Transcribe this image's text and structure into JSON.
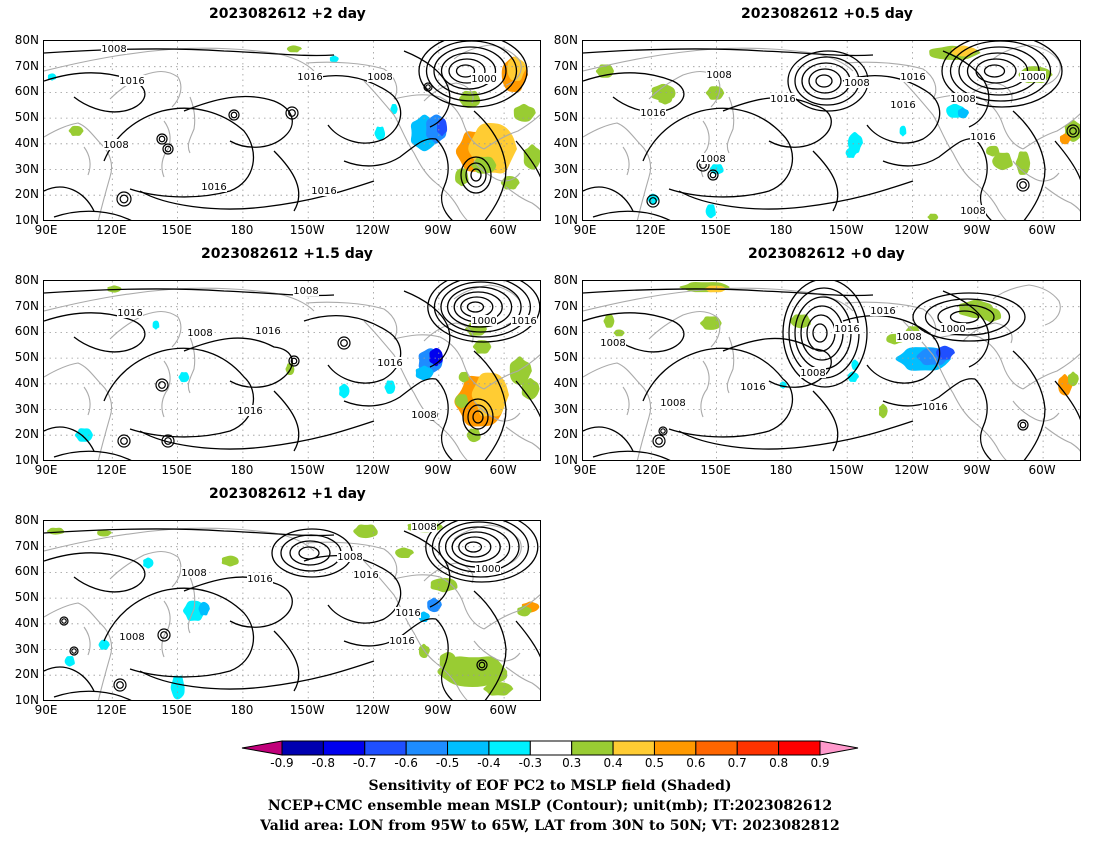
{
  "panels": [
    {
      "id": "p2",
      "title": "2023082612 +2 day"
    },
    {
      "id": "p05",
      "title": "2023082612 +0.5 day"
    },
    {
      "id": "p15",
      "title": "2023082612 +1.5 day"
    },
    {
      "id": "p0",
      "title": "2023082612 +0 day"
    },
    {
      "id": "p1",
      "title": "2023082612 +1 day"
    }
  ],
  "axes": {
    "lat_labels": [
      "80N",
      "70N",
      "60N",
      "50N",
      "40N",
      "30N",
      "20N",
      "10N"
    ],
    "lon_labels": [
      "90E",
      "120E",
      "150E",
      "180",
      "150W",
      "120W",
      "90W",
      "60W"
    ]
  },
  "isobar_labels": {
    "p2": [
      "1008",
      "1016",
      "1008",
      "1000",
      "1016",
      "1008",
      "1016",
      "1016"
    ],
    "p05": [
      "1008",
      "1016",
      "1008",
      "1016",
      "1000",
      "1016",
      "1008",
      "1016",
      "1016",
      "1008",
      "1008"
    ],
    "p15": [
      "1008",
      "1016",
      "1008",
      "1016",
      "1000",
      "1016",
      "1016",
      "1016",
      "1008"
    ],
    "p0": [
      "1008",
      "1016",
      "1008",
      "1008",
      "1000",
      "1016",
      "1016",
      "1008",
      "1016"
    ],
    "p1": [
      "1008",
      "1008",
      "1016",
      "1016",
      "1000",
      "1016",
      "1016",
      "1008",
      "1008"
    ]
  },
  "colorbar": {
    "labels": [
      "-0.9",
      "-0.8",
      "-0.7",
      "-0.6",
      "-0.5",
      "-0.4",
      "-0.3",
      "0.3",
      "0.4",
      "0.5",
      "0.6",
      "0.7",
      "0.8",
      "0.9"
    ],
    "colors": [
      "#c0007a",
      "#0000b0",
      "#0000ee",
      "#1f4fff",
      "#1e8cff",
      "#00bfff",
      "#00f0ff",
      "#ffffff",
      "#99cc33",
      "#ffcc33",
      "#ff9900",
      "#ff6600",
      "#ff3300",
      "#ff0000",
      "#ff99cc"
    ]
  },
  "caption": {
    "line1": "Sensitivity of EOF PC2 to MSLP field (Shaded)",
    "line2": "NCEP+CMC ensemble mean MSLP (Contour); unit(mb); IT:2023082612",
    "line3": "Valid area: LON from 95W to 65W, LAT from 30N to 50N; VT: 2023082812"
  }
}
